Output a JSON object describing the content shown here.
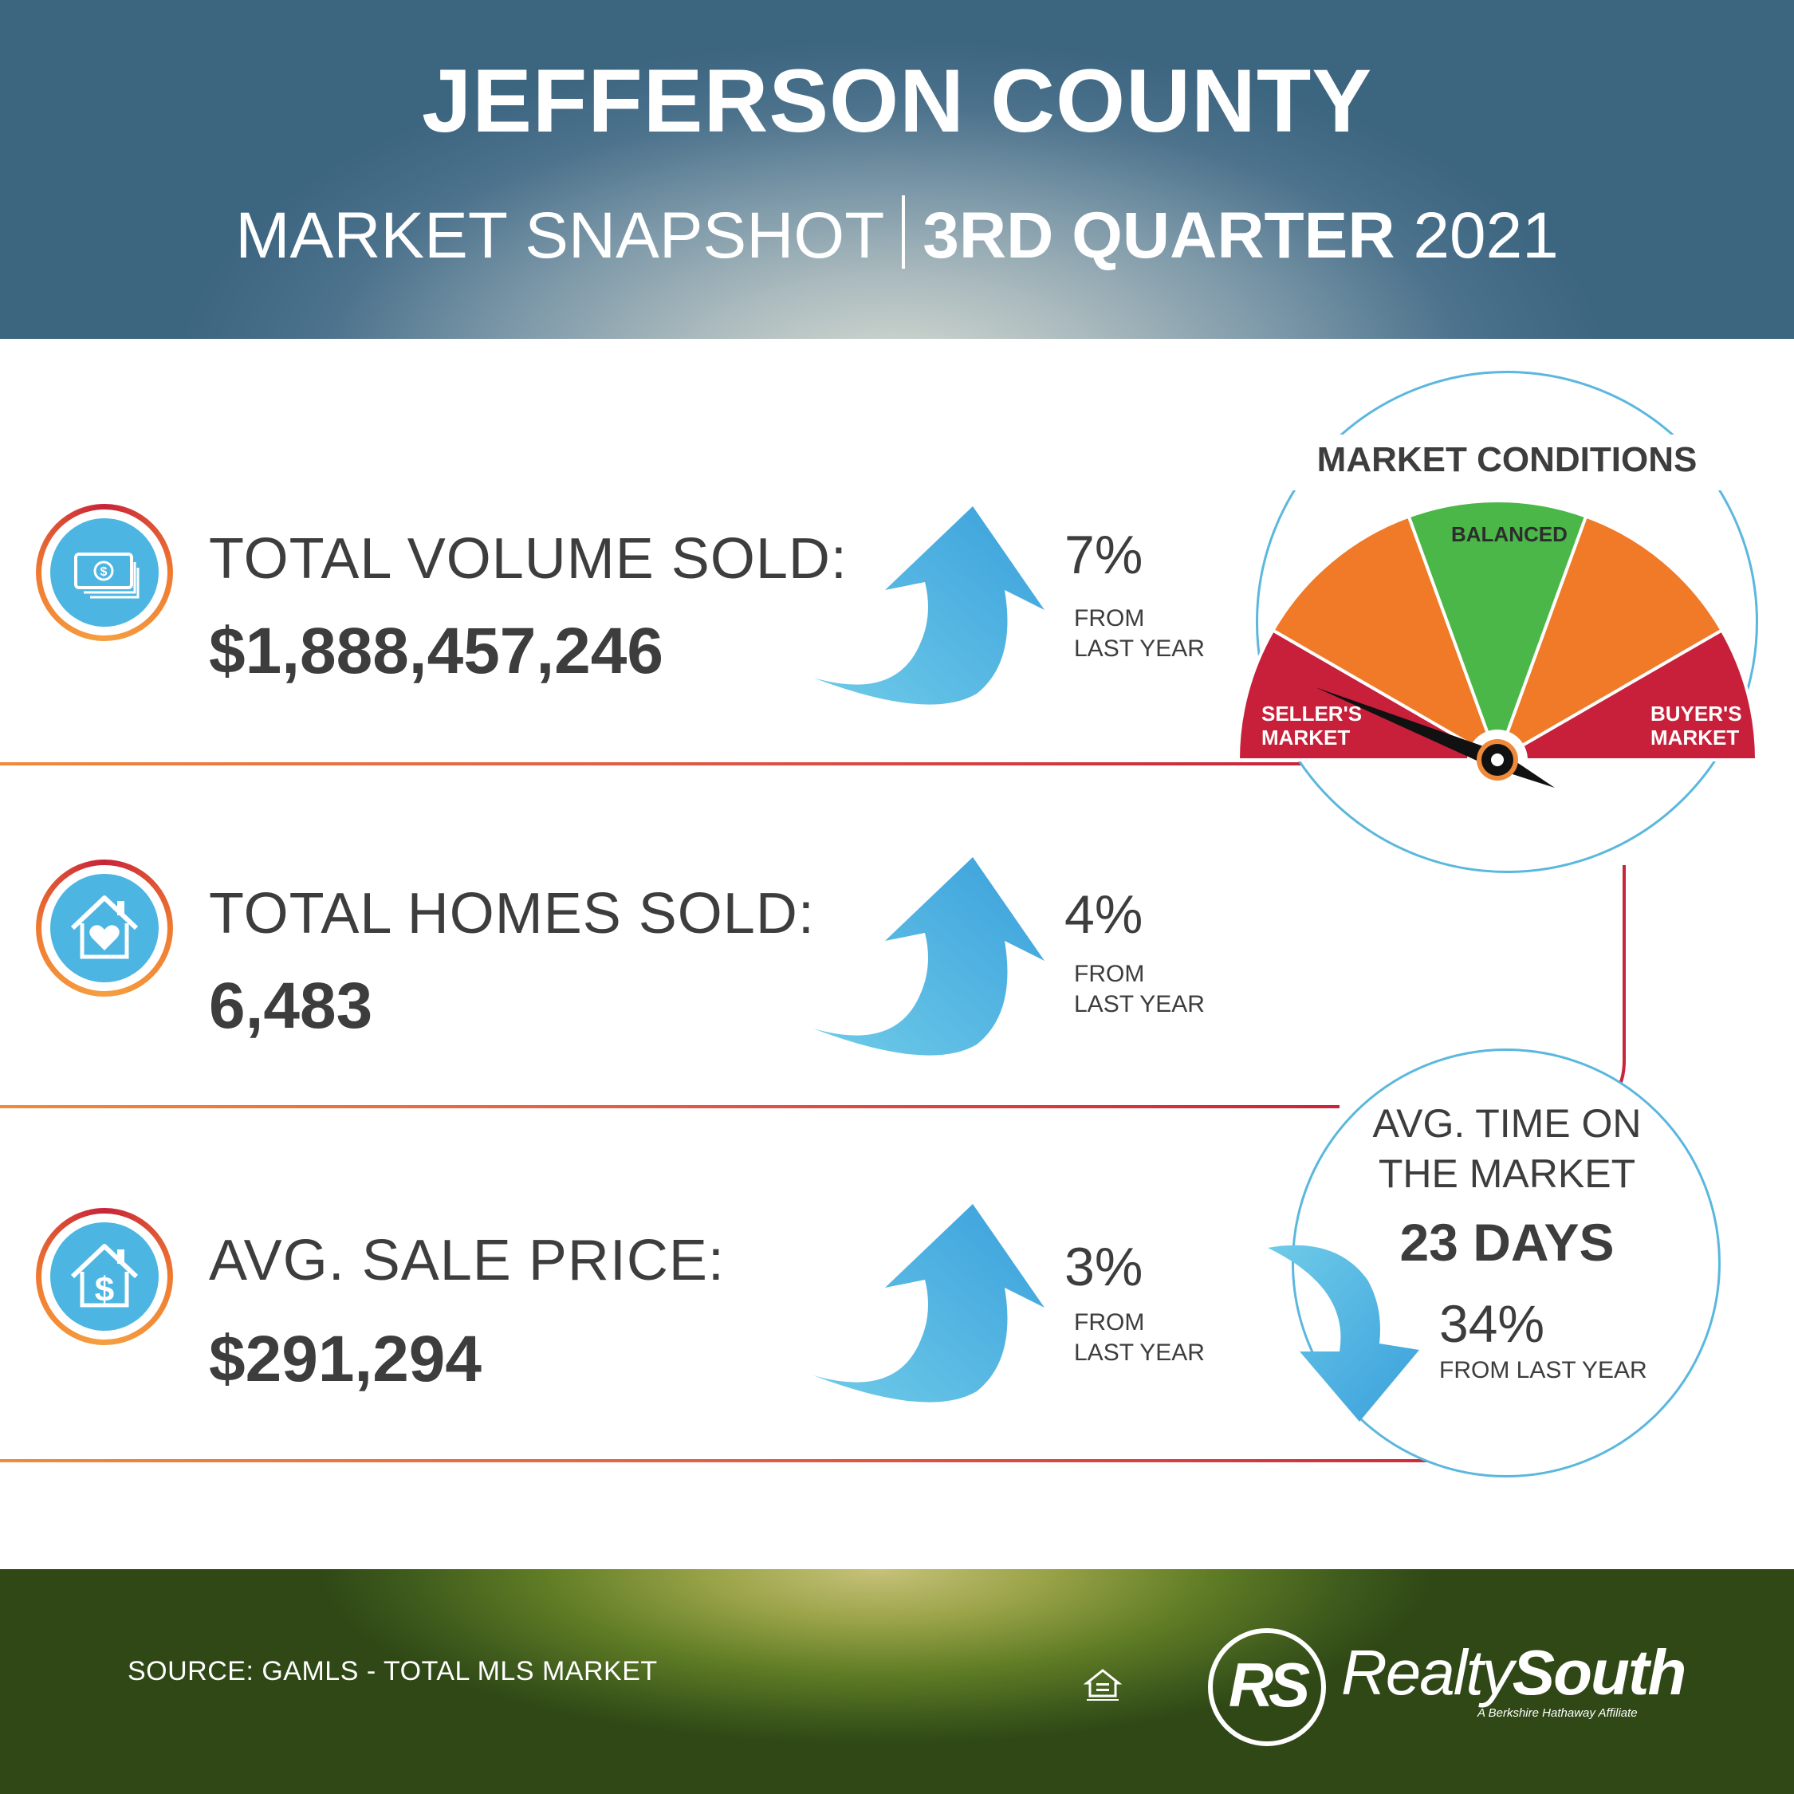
{
  "header": {
    "title": "JEFFERSON COUNTY",
    "subtitle_left": "MARKET SNAPSHOT",
    "subtitle_bold": "3RD QUARTER",
    "subtitle_year": "2021"
  },
  "stats": [
    {
      "label": "TOTAL VOLUME SOLD:",
      "value": "$1,888,457,246",
      "change": "7%",
      "change_sub_1": "FROM",
      "change_sub_2": "LAST YEAR",
      "icon": "money-icon"
    },
    {
      "label": "TOTAL HOMES SOLD:",
      "value": "6,483",
      "change": "4%",
      "change_sub_1": "FROM",
      "change_sub_2": "LAST YEAR",
      "icon": "house-heart-icon"
    },
    {
      "label": "AVG. SALE PRICE:",
      "value": "$291,294",
      "change": "3%",
      "change_sub_1": "FROM",
      "change_sub_2": "LAST YEAR",
      "icon": "house-dollar-icon"
    }
  ],
  "market_conditions": {
    "title": "MARKET CONDITIONS",
    "balanced": "BALANCED",
    "seller_1": "SELLER'S",
    "seller_2": "MARKET",
    "buyer_1": "BUYER'S",
    "buyer_2": "MARKET",
    "indicator": "SELLER'S MARKET"
  },
  "time_on_market": {
    "label_1": "AVG. TIME ON",
    "label_2": "THE MARKET",
    "value": "23 DAYS",
    "change": "34%",
    "change_sub": "FROM LAST YEAR",
    "direction": "down"
  },
  "footer": {
    "source": "SOURCE: GAMLS - TOTAL MLS MARKET",
    "logo_mark": "RS",
    "logo_light": "Realty",
    "logo_bold": "South",
    "logo_tagline": "A Berkshire Hathaway Affiliate"
  },
  "colors": {
    "accent_blue": "#4cb5e2",
    "red": "#c8243a",
    "orange": "#f07a30",
    "green": "#4bb748"
  }
}
